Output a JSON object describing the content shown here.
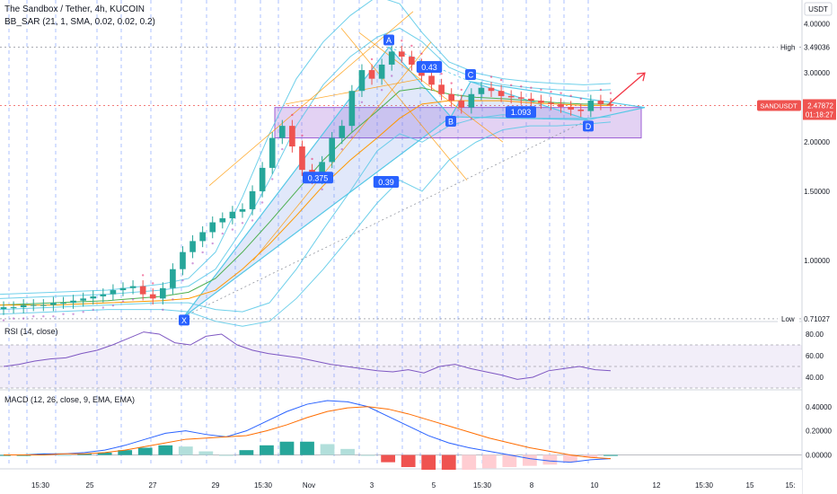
{
  "header": {
    "symbol_title": "The Sandbox / Tether, 4h, KUCOIN",
    "indicator_label": "BB_SAR (21, 1, SMA, 0.02, 0.02, 0.2)"
  },
  "rsi_panel": {
    "label": "RSI (14, close)",
    "ticks": [
      "80.00",
      "60.00",
      "40.00"
    ]
  },
  "macd_panel": {
    "label": "MACD (12, 26, close, 9, EMA, EMA)",
    "ticks": [
      "0.40000",
      "0.20000",
      "0.00000"
    ]
  },
  "price_axis": {
    "currency": "USDT",
    "ticks": [
      "4.00000",
      "3.00000",
      "2.00000",
      "1.50000",
      "1.00000"
    ],
    "high_label": "High",
    "high_value": "3.49036",
    "low_label": "Low",
    "low_value": "0.71027",
    "symbol_badge": "SANDUSDT",
    "last_price": "2.47872",
    "countdown": "01:18:27"
  },
  "time_axis": {
    "ticks": [
      "15:30",
      "25",
      "27",
      "29",
      "15:30",
      "Nov",
      "3",
      "5",
      "15:30",
      "8",
      "10",
      "12",
      "15:30",
      "15",
      "15:"
    ]
  },
  "pattern": {
    "points": [
      "X",
      "A",
      "B",
      "C",
      "D"
    ],
    "ratios": [
      "0.375",
      "0.43",
      "0.39",
      "1.093"
    ]
  },
  "colors": {
    "up": "#26a69a",
    "down": "#ef5350",
    "band": "#56c8e6",
    "pattern_fill": "#5b7ee5",
    "zone": "#9c5fd4",
    "macd": "#2962ff",
    "signal": "#ff6d00",
    "projection": "#f23645",
    "accent": "#2962ff"
  },
  "chart_data": {
    "type": "candlestick",
    "title": "The Sandbox / Tether, 4h, KUCOIN",
    "y_scale": "log",
    "ylim": [
      0.71,
      4.6
    ],
    "grid": false,
    "price_closes": [
      0.76,
      0.76,
      0.77,
      0.77,
      0.77,
      0.78,
      0.78,
      0.79,
      0.8,
      0.81,
      0.82,
      0.84,
      0.85,
      0.86,
      0.82,
      0.8,
      0.85,
      0.95,
      1.05,
      1.12,
      1.18,
      1.25,
      1.28,
      1.33,
      1.35,
      1.5,
      1.72,
      2.05,
      2.2,
      1.95,
      1.7,
      1.62,
      1.78,
      2.05,
      2.2,
      2.7,
      3.05,
      2.9,
      3.15,
      3.4,
      3.3,
      3.15,
      2.95,
      2.8,
      2.65,
      2.55,
      2.45,
      2.65,
      2.75,
      2.7,
      2.62,
      2.6,
      2.58,
      2.55,
      2.52,
      2.5,
      2.46,
      2.42,
      2.4,
      2.55,
      2.5,
      2.48
    ],
    "high": 3.49036,
    "low": 0.71027,
    "last": 2.47872,
    "harmonic": {
      "X": 0.72,
      "A": 3.49,
      "B": 2.32,
      "C": 2.85,
      "D": 2.28,
      "ratios": {
        "XB": 0.375,
        "AC": 0.43,
        "BD": 1.093,
        "XD": 0.39
      }
    },
    "rsi": {
      "ylim": [
        30,
        90
      ],
      "overbought": 70,
      "oversold": 30,
      "values": [
        50,
        52,
        55,
        57,
        58,
        62,
        65,
        70,
        76,
        82,
        80,
        72,
        70,
        78,
        80,
        70,
        65,
        62,
        60,
        58,
        55,
        52,
        50,
        48,
        46,
        45,
        47,
        44,
        50,
        52,
        48,
        45,
        42,
        38,
        40,
        46,
        48,
        50,
        47,
        46
      ]
    },
    "macd": {
      "ylim": [
        -0.1,
        0.48
      ],
      "macd_values": [
        0.0,
        0.0,
        0.01,
        0.01,
        0.02,
        0.04,
        0.08,
        0.13,
        0.18,
        0.2,
        0.17,
        0.15,
        0.2,
        0.28,
        0.36,
        0.42,
        0.45,
        0.44,
        0.4,
        0.32,
        0.24,
        0.16,
        0.1,
        0.06,
        0.03,
        0.0,
        -0.03,
        -0.05,
        -0.06,
        -0.04,
        -0.03
      ],
      "signal_values": [
        0.0,
        0.0,
        0.0,
        0.01,
        0.01,
        0.02,
        0.04,
        0.07,
        0.1,
        0.13,
        0.14,
        0.15,
        0.16,
        0.2,
        0.25,
        0.31,
        0.36,
        0.39,
        0.4,
        0.38,
        0.34,
        0.29,
        0.24,
        0.19,
        0.14,
        0.1,
        0.06,
        0.03,
        0.0,
        -0.02,
        -0.03
      ]
    }
  }
}
